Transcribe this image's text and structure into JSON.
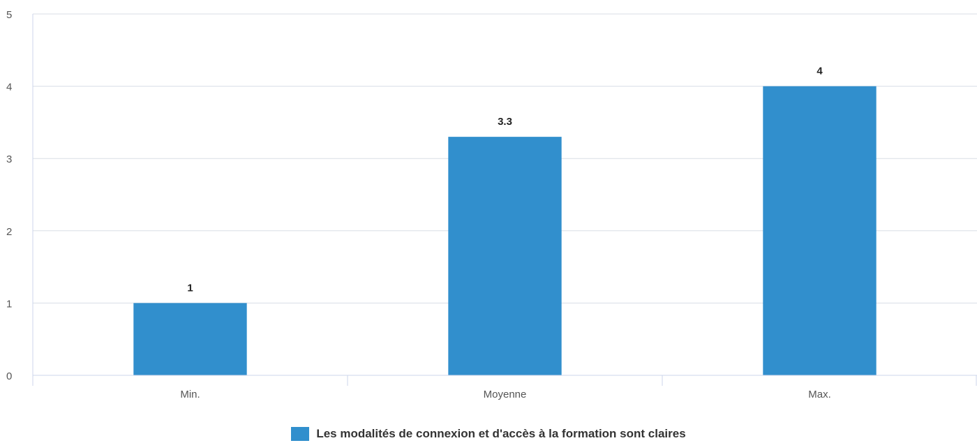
{
  "chart_data": {
    "type": "bar",
    "categories": [
      "Min.",
      "Moyenne",
      "Max."
    ],
    "series": [
      {
        "name": "Les modalités de connexion et d'accès à la formation sont claires",
        "values": [
          1,
          3.3,
          4
        ],
        "color": "#318fcd"
      }
    ],
    "data_labels": [
      "1",
      "3.3",
      "4"
    ],
    "y_ticks": [
      "0",
      "1",
      "2",
      "3",
      "4",
      "5"
    ],
    "ylim": [
      0,
      5
    ],
    "title": "",
    "xlabel": "",
    "ylabel": "",
    "grid": true,
    "legend_position": "bottom-center"
  }
}
